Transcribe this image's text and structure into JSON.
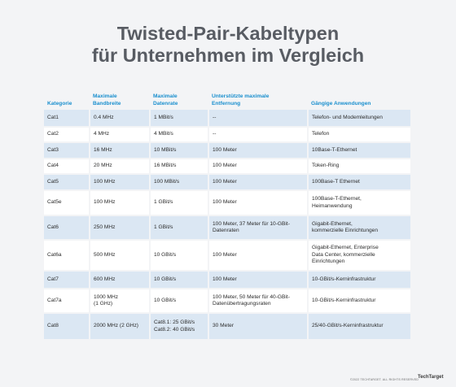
{
  "title_line1": "Twisted-Pair-Kabeltypen",
  "title_line2": "für Unternehmen im Vergleich",
  "headers": {
    "kategorie": "Kategorie",
    "bandbreite_1": "Maximale",
    "bandbreite_2": "Bandbreite",
    "datenrate_1": "Maximale",
    "datenrate_2": "Datenrate",
    "entfernung_1": "Unterstützte maximale",
    "entfernung_2": "Entfernung",
    "anwendungen": "Gängige Anwendungen"
  },
  "rows": [
    {
      "kategorie": "Cat1",
      "bandbreite": "0.4 MHz",
      "datenrate": "1 MBit/s",
      "entfernung": "--",
      "anwendung": "Telefon- und Modemleitungen"
    },
    {
      "kategorie": "Cat2",
      "bandbreite": "4 MHz",
      "datenrate": "4 MBit/s",
      "entfernung": "--",
      "anwendung": "Telefon"
    },
    {
      "kategorie": "Cat3",
      "bandbreite": "16 MHz",
      "datenrate": "10 MBit/s",
      "entfernung": "100 Meter",
      "anwendung": "10Base-T-Ethernet"
    },
    {
      "kategorie": "Cat4",
      "bandbreite": "20 MHz",
      "datenrate": "16 MBit/s",
      "entfernung": "100 Meter",
      "anwendung": "Token-Ring"
    },
    {
      "kategorie": "Cat5",
      "bandbreite": "100 MHz",
      "datenrate": "100 MBit/s",
      "entfernung": "100 Meter",
      "anwendung": "100Base-T Ethernet"
    },
    {
      "kategorie": "Cat5e",
      "bandbreite": "100 MHz",
      "datenrate": "1 GBit/s",
      "entfernung": "100 Meter",
      "anwendung_1": "100Base-T-Ethernet,",
      "anwendung_2": "Heimanwendung"
    },
    {
      "kategorie": "Cat6",
      "bandbreite": "250 MHz",
      "datenrate": "1 GBit/s",
      "entfernung_1": "100 Meter, 37 Meter für 10-GBit-",
      "entfernung_2": "Datenraten",
      "anwendung_1": "Gigabit-Ethernet,",
      "anwendung_2": "kommerzielle Einrichtungen"
    },
    {
      "kategorie": "Cat6a",
      "bandbreite": "500 MHz",
      "datenrate": "10 GBit/s",
      "entfernung": "100 Meter",
      "anwendung_1": "Gigabit-Ethernet, Enterprise",
      "anwendung_2": "Data Center, kommerzielle",
      "anwendung_3": "Einrichtungen"
    },
    {
      "kategorie": "Cat7",
      "bandbreite": "600 MHz",
      "datenrate": "10 GBit/s",
      "entfernung": "100 Meter",
      "anwendung": "10-GBit/s-Kerninfrastruktur"
    },
    {
      "kategorie": "Cat7a",
      "bandbreite_1": "1000 MHz",
      "bandbreite_2": "(1 GHz)",
      "datenrate": "10 GBit/s",
      "entfernung_1": "100 Meter, 50 Meter für 40-GBit-",
      "entfernung_2": "Datenübertragungsraten",
      "anwendung": "10-GBit/s-Kerninfrastruktur"
    },
    {
      "kategorie": "Cat8",
      "bandbreite": "2000 MHz (2 GHz)",
      "datenrate_1": "Cat8.1: 25 GBit/s",
      "datenrate_2": "Cat8.2: 40 GBit/s",
      "entfernung": "30 Meter",
      "anwendung": "25/40-GBit/s-Kerninfrastruktur"
    }
  ],
  "footer": {
    "copyright": "©2022 TECHTARGET. ALL RIGHTS RESERVED",
    "logo": "TechTarget"
  }
}
